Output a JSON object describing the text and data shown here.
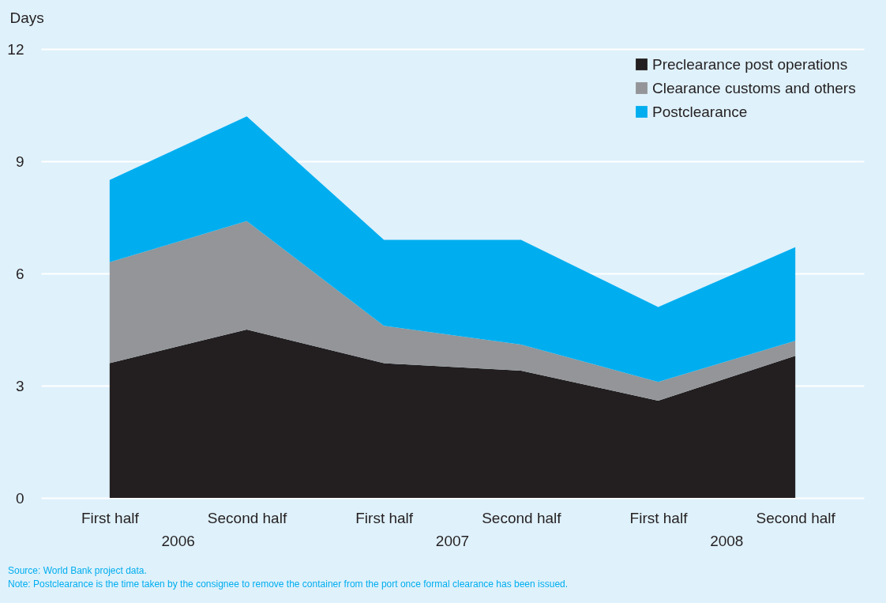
{
  "chart_data": {
    "type": "area",
    "stacked": true,
    "ylabel": "Days",
    "categories": [
      "First half",
      "Second half",
      "First half",
      "Second half",
      "First half",
      "Second half"
    ],
    "series": [
      {
        "name": "Preclearance post operations",
        "color": "#231f20",
        "values": [
          3.6,
          4.5,
          3.6,
          3.4,
          2.6,
          3.8
        ]
      },
      {
        "name": "Clearance customs and others",
        "color": "#939598",
        "values": [
          2.7,
          2.9,
          1.0,
          0.7,
          0.5,
          0.4
        ]
      },
      {
        "name": "Postclearance",
        "color": "#00aeef",
        "values": [
          2.2,
          2.8,
          2.3,
          2.8,
          2.0,
          2.5
        ]
      }
    ],
    "ylim": [
      0,
      12
    ],
    "yticks": [
      0,
      3,
      6,
      9,
      12
    ],
    "grid": "y",
    "legend": "top right",
    "annotations": [
      "2006",
      "2007",
      "2008",
      "Source: World Bank project data.",
      "Note: Postclearance is the time taken by the consignee to remove the container from the port once formal clearance has been issued."
    ]
  }
}
